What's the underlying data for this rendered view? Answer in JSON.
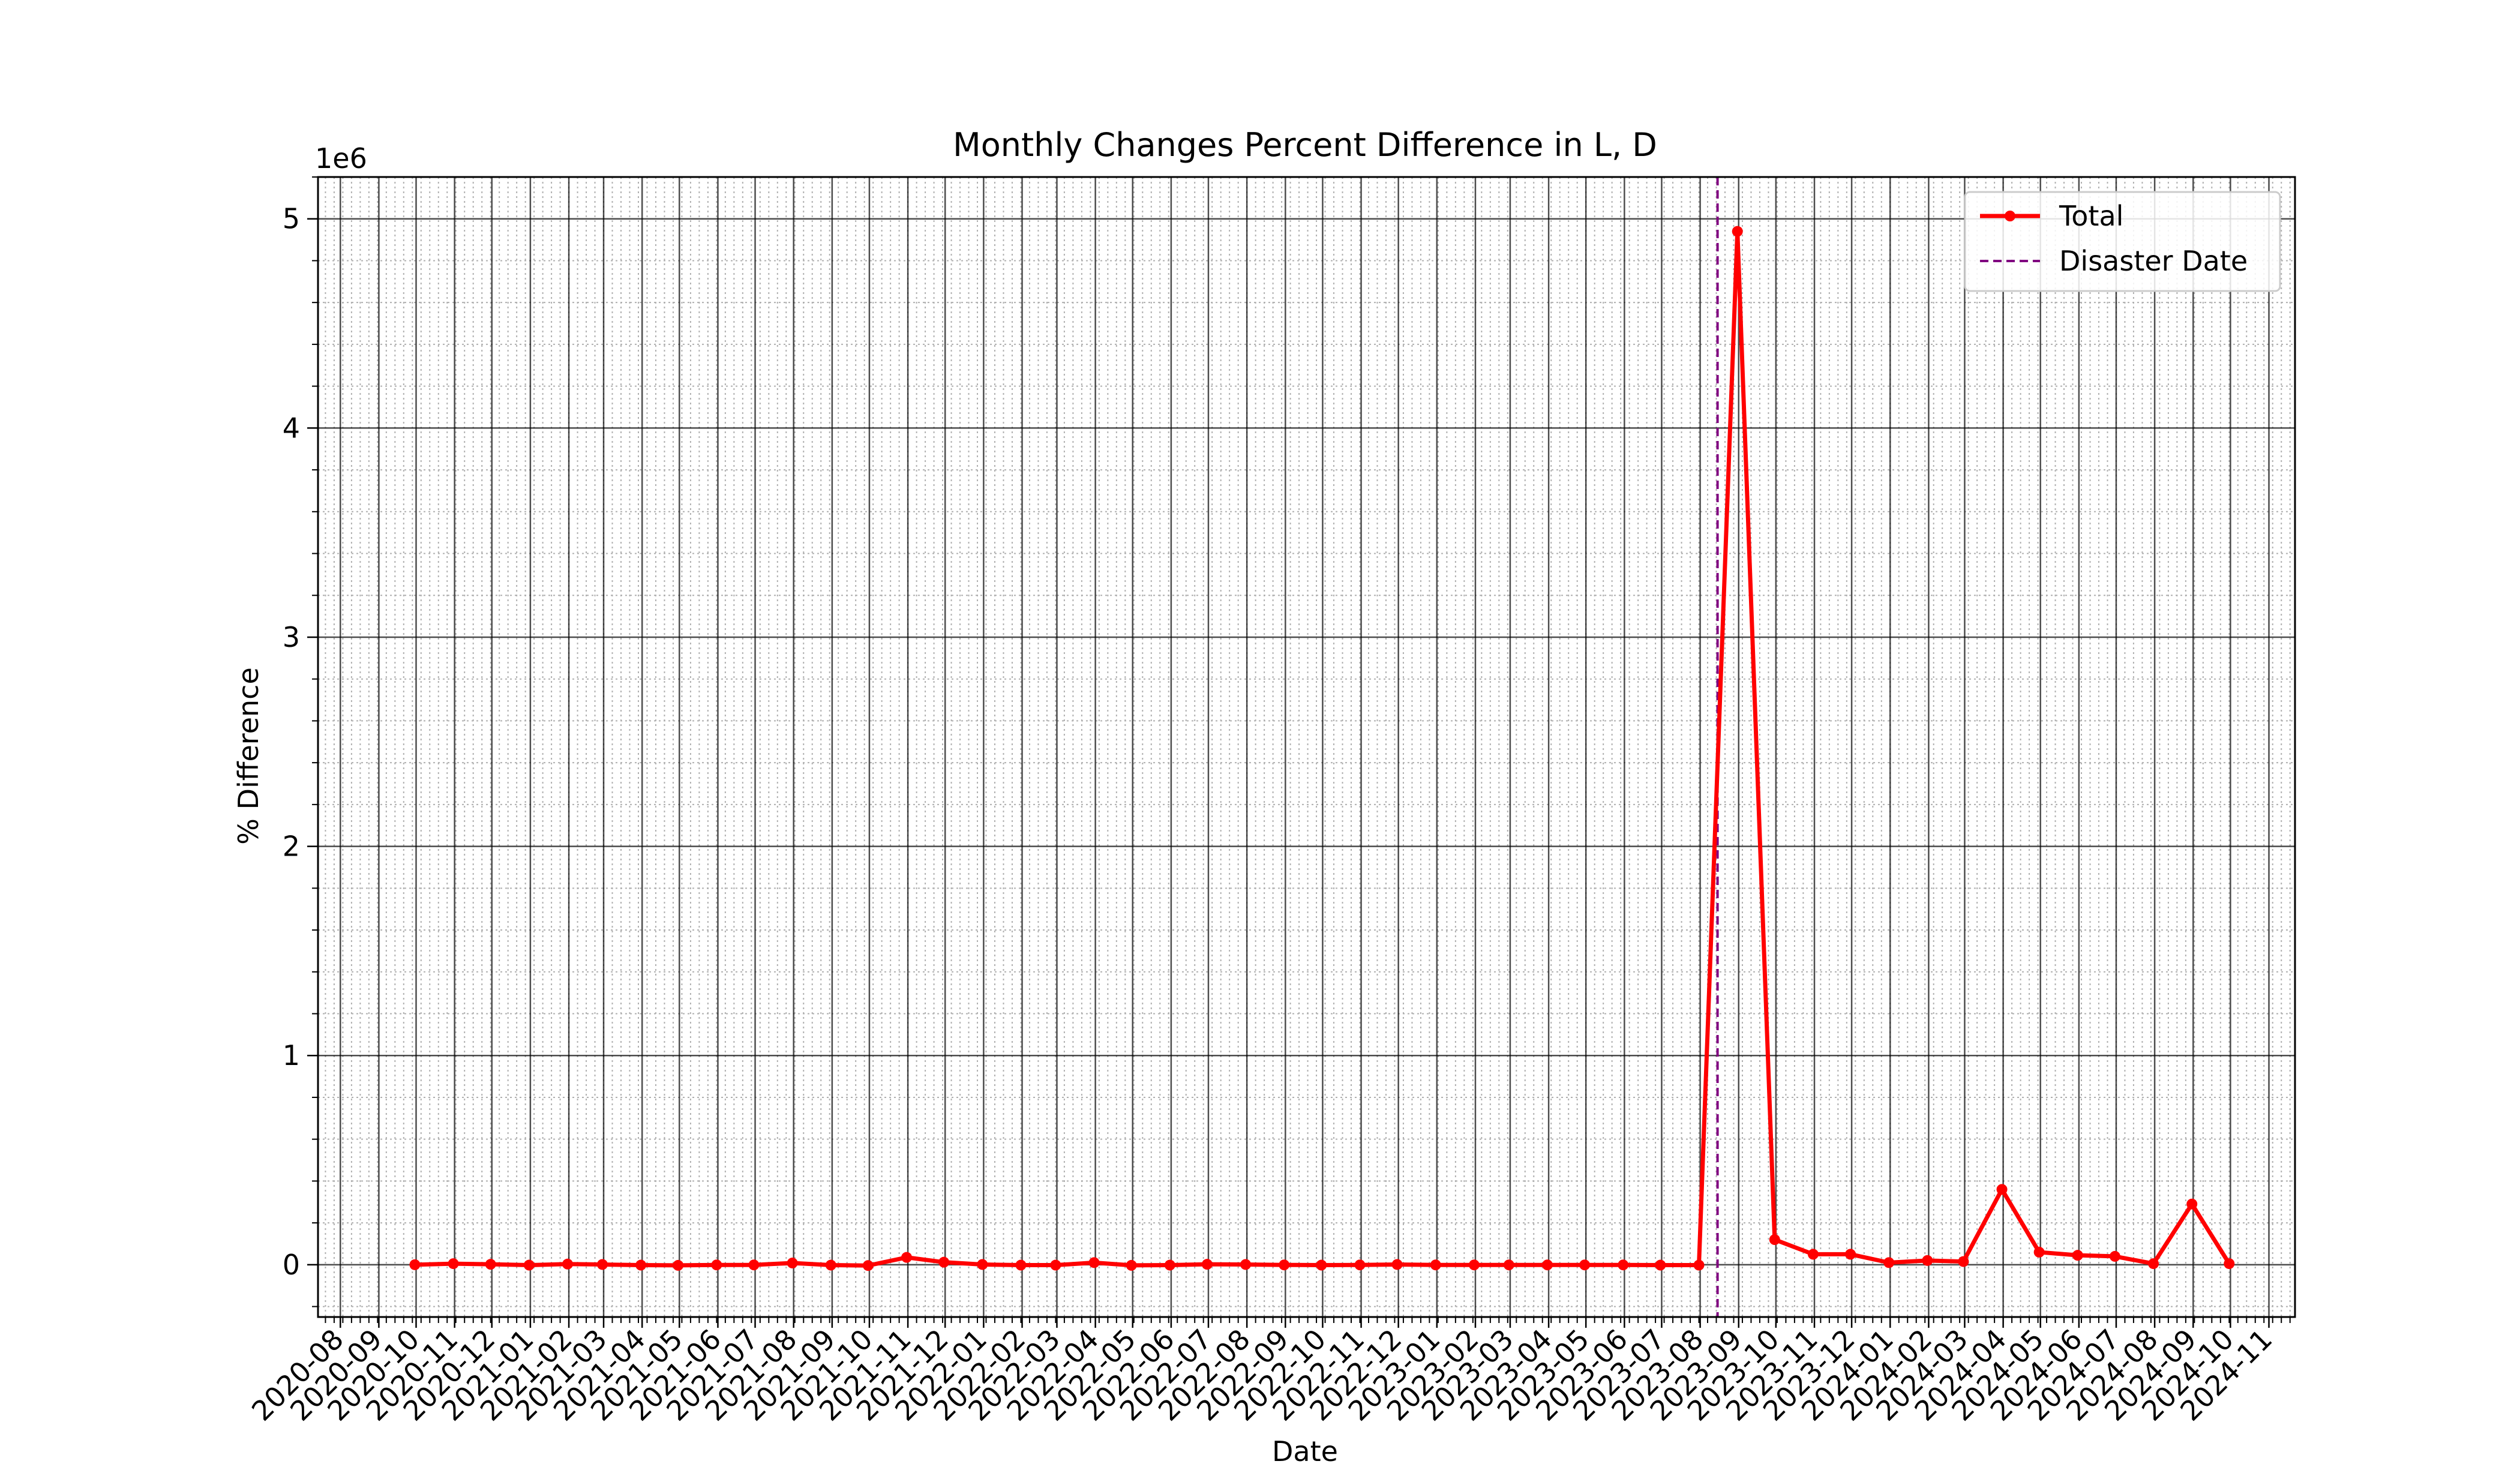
{
  "chart_data": {
    "type": "line",
    "title": "Monthly Changes Percent Difference in L, D",
    "xlabel": "Date",
    "ylabel": "% Difference",
    "y_offset_label": "1e6",
    "y_scale_multiplier": 1000000,
    "x_range": [
      "2020-07-14",
      "2024-11-22"
    ],
    "ylim": [
      -250000,
      5200000
    ],
    "y_ticks": [
      0,
      1000000,
      2000000,
      3000000,
      4000000,
      5000000
    ],
    "y_tick_labels": [
      "0",
      "1",
      "2",
      "3",
      "4",
      "5"
    ],
    "x_tick_labels": [
      "2020-08",
      "2020-09",
      "2020-10",
      "2020-11",
      "2020-12",
      "2021-01",
      "2021-02",
      "2021-03",
      "2021-04",
      "2021-05",
      "2021-06",
      "2021-07",
      "2021-08",
      "2021-09",
      "2021-10",
      "2021-11",
      "2021-12",
      "2022-01",
      "2022-02",
      "2022-03",
      "2022-04",
      "2022-05",
      "2022-06",
      "2022-07",
      "2022-08",
      "2022-09",
      "2022-10",
      "2022-11",
      "2022-12",
      "2023-01",
      "2023-02",
      "2023-03",
      "2023-04",
      "2023-05",
      "2023-06",
      "2023-07",
      "2023-08",
      "2023-09",
      "2023-10",
      "2023-11",
      "2023-12",
      "2024-01",
      "2024-02",
      "2024-03",
      "2024-04",
      "2024-05",
      "2024-06",
      "2024-07",
      "2024-08",
      "2024-09",
      "2024-10",
      "2024-11"
    ],
    "grid": "major and minor",
    "legend_position": "top-right",
    "series": [
      {
        "name": "Total",
        "color": "#ff0000",
        "marker": "circle",
        "x": [
          "2020-09-30",
          "2020-10-31",
          "2020-11-30",
          "2020-12-31",
          "2021-01-31",
          "2021-02-28",
          "2021-03-31",
          "2021-04-30",
          "2021-05-31",
          "2021-06-30",
          "2021-07-31",
          "2021-08-31",
          "2021-09-30",
          "2021-10-31",
          "2021-11-30",
          "2021-12-31",
          "2022-01-31",
          "2022-02-28",
          "2022-03-31",
          "2022-04-30",
          "2022-05-31",
          "2022-06-30",
          "2022-07-31",
          "2022-08-31",
          "2022-09-30",
          "2022-10-31",
          "2022-11-30",
          "2022-12-31",
          "2023-01-31",
          "2023-02-28",
          "2023-03-31",
          "2023-04-30",
          "2023-05-31",
          "2023-06-30",
          "2023-07-31",
          "2023-08-31",
          "2023-09-30",
          "2023-10-31",
          "2023-11-30",
          "2023-12-31",
          "2024-01-31",
          "2024-02-29",
          "2024-03-31",
          "2024-04-30",
          "2024-05-31",
          "2024-06-30",
          "2024-07-31",
          "2024-08-31",
          "2024-09-30"
        ],
        "y": [
          0,
          5000,
          2000,
          -2000,
          3000,
          1000,
          -2000,
          -3000,
          -1000,
          -1000,
          8000,
          -2000,
          -4000,
          35000,
          12000,
          1000,
          -2000,
          -2000,
          10000,
          -3000,
          -2000,
          2000,
          1000,
          -1000,
          -2000,
          -1000,
          1000,
          -1000,
          -1000,
          -1000,
          -1000,
          -1000,
          -1000,
          -2000,
          -2000,
          4940000,
          120000,
          50000,
          50000,
          10000,
          20000,
          15000,
          360000,
          60000,
          45000,
          40000,
          5000,
          290000,
          5000
        ]
      },
      {
        "name": "Disaster Date",
        "color": "#800080",
        "style": "dashed",
        "type": "vline",
        "x_value": "2023-08-15"
      }
    ]
  }
}
